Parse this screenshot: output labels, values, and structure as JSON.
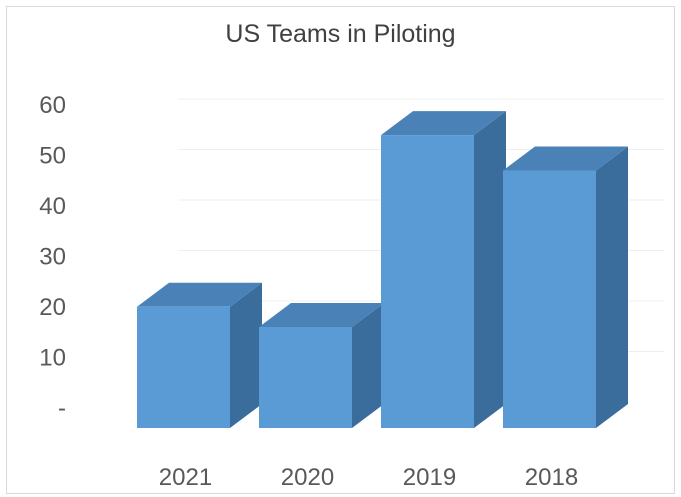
{
  "chart_data": {
    "type": "bar",
    "title": "US Teams in Piloting",
    "xlabel": "",
    "ylabel": "",
    "categories": [
      "2021",
      "2020",
      "2019",
      "2018"
    ],
    "values": [
      24,
      20,
      58,
      51
    ],
    "ylim": [
      0,
      70
    ],
    "yticks": [
      0,
      10,
      20,
      30,
      40,
      50,
      60
    ],
    "ytick_labels": [
      "-",
      "10",
      "20",
      "30",
      "40",
      "50",
      "60"
    ],
    "grid": true,
    "legend": "none",
    "bar_front_color": "#5b9bd5",
    "bar_side_color": "#3a6d9c",
    "bar_top_color": "#4a82b8",
    "gridline_color": "#efefef",
    "axis_text_color": "#595959"
  }
}
